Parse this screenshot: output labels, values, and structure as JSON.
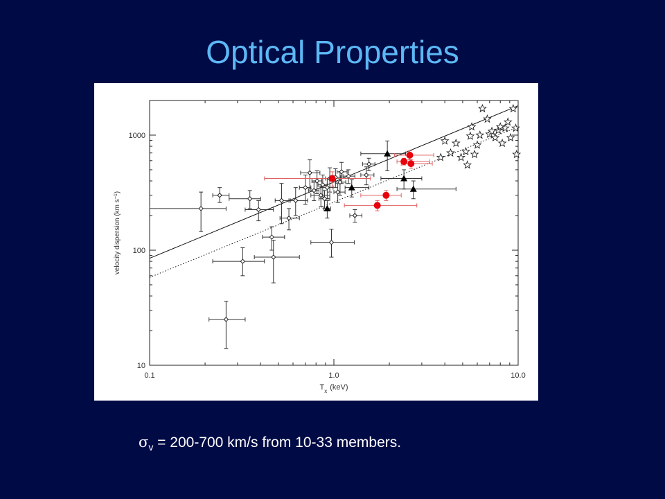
{
  "slide": {
    "title": "Optical Properties",
    "caption_symbol": "σ",
    "caption_subscript": "v",
    "caption_text": " = 200-700 km/s from 10-33 members.",
    "background": "#000a45",
    "title_color": "#5cb8f5"
  },
  "chart_data": {
    "type": "scatter",
    "title": "",
    "xlabel": "T",
    "xlabel_subscript": "x",
    "xlabel_unit": "(keV)",
    "ylabel": "velocity dispersion (km s",
    "ylabel_superscript": "−1",
    "ylabel_end": ")",
    "xscale": "log",
    "yscale": "log",
    "xlim": [
      0.1,
      10.0
    ],
    "ylim": [
      10,
      2000
    ],
    "x_ticks": [
      {
        "value": 0.1,
        "label": "0.1"
      },
      {
        "value": 1.0,
        "label": "1.0"
      },
      {
        "value": 10.0,
        "label": "10.0"
      }
    ],
    "y_ticks": [
      {
        "value": 10,
        "label": "10"
      },
      {
        "value": 100,
        "label": "100"
      },
      {
        "value": 1000,
        "label": "1000"
      }
    ],
    "colors": {
      "red": "#e8000b",
      "black": "#000000",
      "red_errorbar": "#e06060"
    },
    "lines": [
      {
        "style": "solid",
        "points": [
          [
            0.1,
            85
          ],
          [
            10.0,
            1800
          ]
        ]
      },
      {
        "style": "dotted",
        "points": [
          [
            0.1,
            58
          ],
          [
            10.0,
            1180
          ]
        ]
      }
    ],
    "series": [
      {
        "marker": "open-diamond",
        "points": [
          {
            "x": 0.19,
            "y": 230,
            "xerr": [
              0.09,
              0.07
            ],
            "yerr": [
              85,
              90
            ]
          },
          {
            "x": 0.24,
            "y": 300,
            "xerr": [
              0.02,
              0.03
            ],
            "yerr": [
              40,
              50
            ]
          },
          {
            "x": 0.26,
            "y": 25,
            "xerr": [
              0.05,
              0.07
            ],
            "yerr": [
              11,
              11
            ]
          },
          {
            "x": 0.32,
            "y": 80,
            "xerr": [
              0.1,
              0.1
            ],
            "yerr": [
              20,
              25
            ]
          },
          {
            "x": 0.35,
            "y": 280,
            "xerr": [
              0.08,
              0.05
            ],
            "yerr": [
              50,
              50
            ]
          },
          {
            "x": 0.39,
            "y": 225,
            "xerr": [
              0.06,
              0.08
            ],
            "yerr": [
              45,
              45
            ]
          },
          {
            "x": 0.46,
            "y": 130,
            "xerr": [
              0.05,
              0.08
            ],
            "yerr": [
              30,
              30
            ]
          },
          {
            "x": 0.47,
            "y": 87,
            "xerr": [
              0.1,
              0.18
            ],
            "yerr": [
              35,
              35
            ]
          },
          {
            "x": 0.52,
            "y": 270,
            "xerr": [
              0.04,
              0.06
            ],
            "yerr": [
              100,
              110
            ]
          },
          {
            "x": 0.57,
            "y": 190,
            "xerr": [
              0.06,
              0.08
            ],
            "yerr": [
              40,
              40
            ]
          },
          {
            "x": 0.62,
            "y": 270,
            "xerr": [
              0.05,
              0.1
            ],
            "yerr": [
              70,
              80
            ]
          },
          {
            "x": 0.7,
            "y": 350,
            "xerr": [
              0.05,
              0.05
            ],
            "yerr": [
              100,
              100
            ]
          },
          {
            "x": 0.74,
            "y": 470,
            "xerr": [
              0.08,
              0.1
            ],
            "yerr": [
              130,
              140
            ]
          },
          {
            "x": 0.78,
            "y": 330,
            "xerr": [
              0.05,
              0.05
            ],
            "yerr": [
              60,
              60
            ]
          },
          {
            "x": 0.81,
            "y": 400,
            "xerr": [
              0.05,
              0.05
            ],
            "yerr": [
              90,
              90
            ]
          },
          {
            "x": 0.85,
            "y": 300,
            "xerr": [
              0.1,
              0.1
            ],
            "yerr": [
              60,
              60
            ]
          },
          {
            "x": 0.87,
            "y": 370,
            "xerr": [
              0.05,
              0.05
            ],
            "yerr": [
              80,
              80
            ]
          },
          {
            "x": 0.89,
            "y": 280,
            "xerr": [
              0.06,
              0.06
            ],
            "yerr": [
              50,
              50
            ]
          },
          {
            "x": 0.92,
            "y": 350,
            "xerr": [
              0.07,
              0.07
            ],
            "yerr": [
              70,
              70
            ]
          },
          {
            "x": 0.95,
            "y": 420,
            "xerr": [
              0.05,
              0.05
            ],
            "yerr": [
              100,
              100
            ]
          },
          {
            "x": 0.97,
            "y": 117,
            "xerr": [
              0.22,
              0.32
            ],
            "yerr": [
              30,
              35
            ]
          },
          {
            "x": 1.02,
            "y": 430,
            "xerr": [
              0.07,
              0.07
            ],
            "yerr": [
              80,
              80
            ]
          },
          {
            "x": 1.05,
            "y": 320,
            "xerr": [
              0.05,
              0.1
            ],
            "yerr": [
              60,
              60
            ]
          },
          {
            "x": 1.08,
            "y": 390,
            "xerr": [
              0.06,
              0.08
            ],
            "yerr": [
              90,
              90
            ]
          },
          {
            "x": 1.1,
            "y": 480,
            "xerr": [
              0.06,
              0.08
            ],
            "yerr": [
              100,
              100
            ]
          },
          {
            "x": 1.2,
            "y": 440,
            "xerr": [
              0.08,
              0.1
            ],
            "yerr": [
              60,
              60
            ]
          },
          {
            "x": 1.3,
            "y": 200,
            "xerr": [
              0.08,
              0.12
            ],
            "yerr": [
              25,
              25
            ]
          },
          {
            "x": 1.5,
            "y": 450,
            "xerr": [
              0.1,
              0.15
            ],
            "yerr": [
              80,
              80
            ]
          },
          {
            "x": 1.55,
            "y": 560,
            "xerr": [
              0.12,
              0.12
            ],
            "yerr": [
              70,
              70
            ]
          }
        ]
      },
      {
        "marker": "filled-triangle",
        "points": [
          {
            "x": 0.92,
            "y": 230,
            "xerr": [
              0.04,
              0.04
            ],
            "yerr": [
              40,
              40
            ]
          },
          {
            "x": 1.25,
            "y": 350,
            "xerr": [
              0.1,
              0.3
            ],
            "yerr": [
              60,
              60
            ]
          },
          {
            "x": 1.95,
            "y": 690,
            "xerr": [
              0.55,
              0.5
            ],
            "yerr": [
              200,
              200
            ]
          },
          {
            "x": 2.4,
            "y": 420,
            "xerr": [
              0.6,
              0.6
            ],
            "yerr": [
              80,
              80
            ]
          },
          {
            "x": 2.7,
            "y": 340,
            "xerr": [
              0.5,
              1.9
            ],
            "yerr": [
              60,
              60
            ]
          }
        ]
      },
      {
        "marker": "filled-circle-red",
        "points": [
          {
            "x": 0.98,
            "y": 420,
            "xerr": [
              0.56,
              0.6
            ],
            "yerr": [
              60,
              60
            ]
          },
          {
            "x": 1.72,
            "y": 245,
            "xerr": [
              0.58,
              1.1
            ],
            "yerr": [
              25,
              25
            ]
          },
          {
            "x": 1.92,
            "y": 300,
            "xerr": [
              0.52,
              0.4
            ],
            "yerr": [
              30,
              30
            ]
          },
          {
            "x": 2.4,
            "y": 590,
            "xerr": [
              0.2,
              0.9
            ],
            "yerr": [
              40,
              40
            ]
          },
          {
            "x": 2.58,
            "y": 670,
            "xerr": [
              0.45,
              0.9
            ],
            "yerr": [
              60,
              60
            ]
          },
          {
            "x": 2.62,
            "y": 565,
            "xerr": [
              0.3,
              0.8
            ],
            "yerr": [
              50,
              50
            ]
          }
        ]
      },
      {
        "marker": "open-star",
        "points": [
          {
            "x": 3.8,
            "y": 640
          },
          {
            "x": 4.0,
            "y": 890
          },
          {
            "x": 4.3,
            "y": 700
          },
          {
            "x": 4.6,
            "y": 850
          },
          {
            "x": 4.9,
            "y": 640
          },
          {
            "x": 5.2,
            "y": 720
          },
          {
            "x": 5.3,
            "y": 550
          },
          {
            "x": 5.5,
            "y": 980
          },
          {
            "x": 5.6,
            "y": 1180
          },
          {
            "x": 5.8,
            "y": 680
          },
          {
            "x": 6.2,
            "y": 1000
          },
          {
            "x": 6.4,
            "y": 1700
          },
          {
            "x": 6.8,
            "y": 1380
          },
          {
            "x": 7.0,
            "y": 1020
          },
          {
            "x": 7.2,
            "y": 1080
          },
          {
            "x": 7.5,
            "y": 950
          },
          {
            "x": 7.8,
            "y": 1100
          },
          {
            "x": 8.2,
            "y": 850
          },
          {
            "x": 8.5,
            "y": 1150
          },
          {
            "x": 8.8,
            "y": 1300
          },
          {
            "x": 9.1,
            "y": 950
          },
          {
            "x": 9.4,
            "y": 1700
          },
          {
            "x": 9.7,
            "y": 1150
          },
          {
            "x": 9.8,
            "y": 680
          },
          {
            "x": 6.0,
            "y": 820
          },
          {
            "x": 8.0,
            "y": 1180
          }
        ]
      }
    ]
  }
}
